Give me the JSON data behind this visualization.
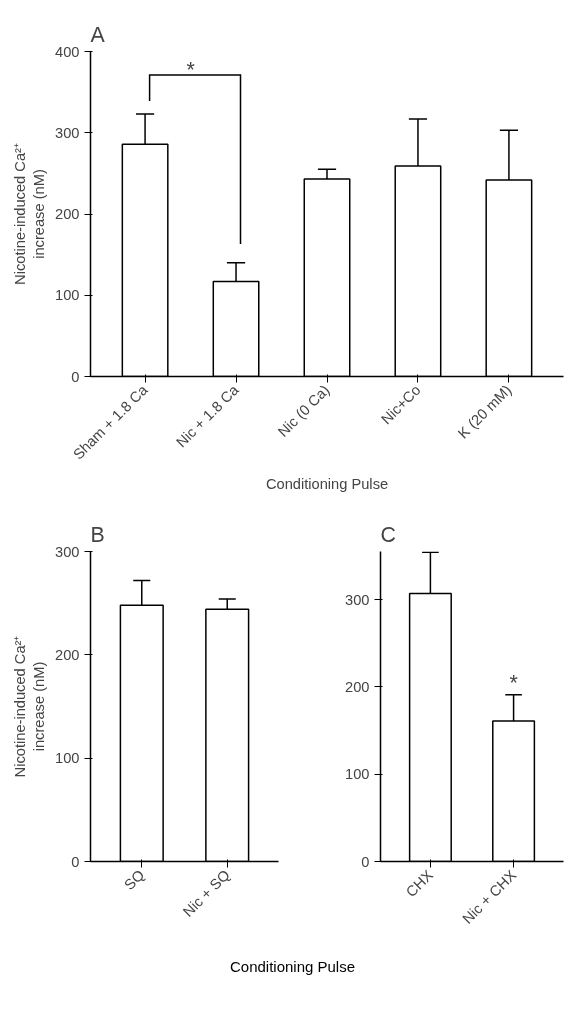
{
  "chart_data": [
    {
      "type": "bar",
      "title": "A",
      "xlabel": "Conditioning Pulse",
      "ylabel": "Nicotine-induced Ca²⁺\nincrease (nM)",
      "categories": [
        "Sham + 1.8 Ca",
        "Nic + 1.8 Ca",
        "Nic (0 Ca)",
        "Nic+Co",
        "K (20 mM)"
      ],
      "values": [
        286,
        117,
        243,
        259,
        242
      ],
      "errors": [
        37,
        23,
        12,
        58,
        61
      ],
      "color": "#ffffff",
      "ylim": [
        0,
        400
      ],
      "yticks": [
        0,
        100,
        200,
        300,
        400
      ],
      "grid": false,
      "annotations": [
        "*"
      ]
    },
    {
      "type": "bar",
      "title": "B",
      "xlabel": "Conditioning Pulse",
      "ylabel": "Nicotine-induced Ca²⁺\nincrease (nM)",
      "categories": [
        "SQ",
        "Nic + SQ"
      ],
      "values": [
        248,
        244
      ],
      "errors": [
        24,
        10
      ],
      "color": "#ffffff",
      "ylim": [
        0,
        300
      ],
      "yticks": [
        0,
        100,
        200,
        300
      ],
      "grid": false
    },
    {
      "type": "bar",
      "title": "C",
      "categories": [
        "CHX",
        "Nic + CHX"
      ],
      "values": [
        307,
        161
      ],
      "errors": [
        47,
        30
      ],
      "color": "#ffffff",
      "ylim": [
        0,
        355
      ],
      "yticks": [
        0,
        100,
        200,
        300
      ],
      "grid": false,
      "annotations": [
        {
          "text": "*",
          "x": "Nic + CHX",
          "y": 191
        }
      ]
    }
  ]
}
